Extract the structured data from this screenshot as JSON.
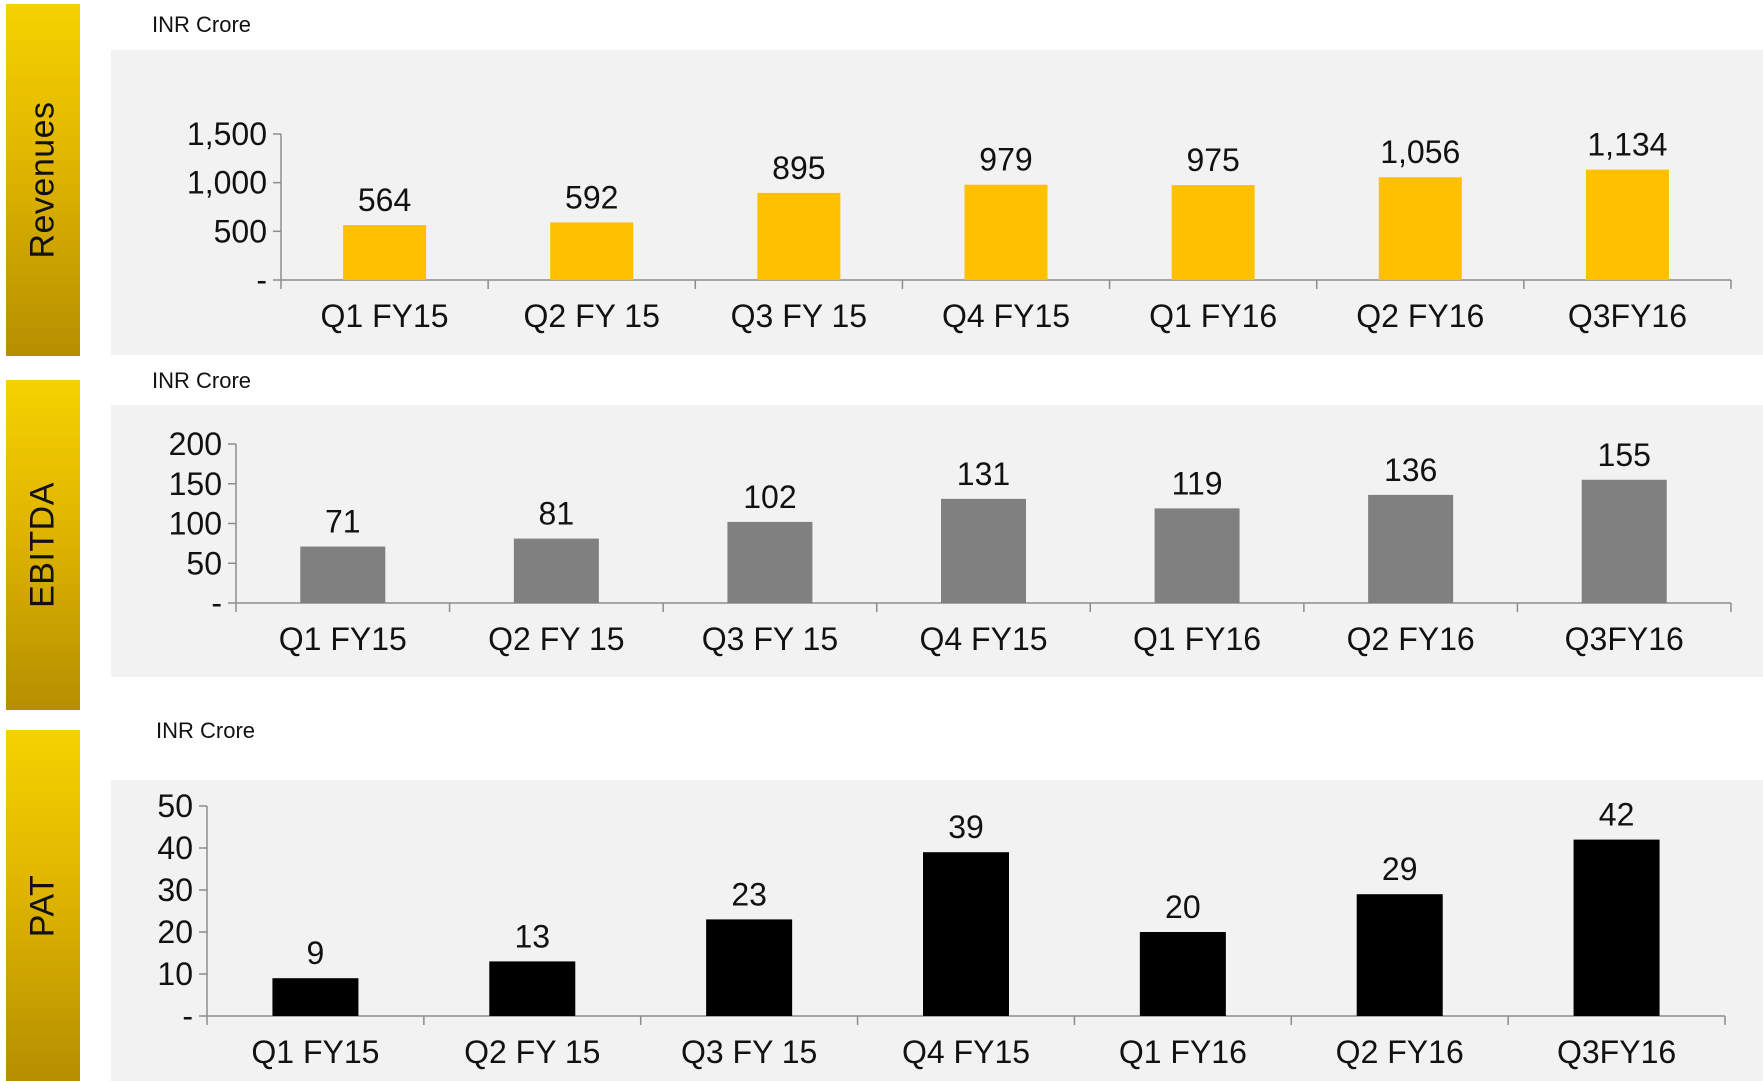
{
  "charts": [
    {
      "side_label": "Revenues",
      "unit": "INR Crore"
    },
    {
      "side_label": "EBITDA",
      "unit": "INR Crore"
    },
    {
      "side_label": "PAT",
      "unit": "INR Crore"
    }
  ],
  "chart_data": [
    {
      "type": "bar",
      "categories": [
        "Q1 FY15",
        "Q2 FY 15",
        "Q3 FY 15",
        "Q4 FY15",
        "Q1 FY16",
        "Q2 FY16",
        "Q3FY16"
      ],
      "values": [
        564,
        592,
        895,
        979,
        975,
        1056,
        1134
      ],
      "value_labels": [
        "564",
        "592",
        "895",
        "979",
        "975",
        "1,056",
        "1,134"
      ],
      "title": "",
      "ylabel": "Revenues",
      "unit": "INR Crore",
      "ylim": [
        0,
        1500
      ],
      "yticks": [
        0,
        500,
        1000,
        1500
      ],
      "ytick_labels": [
        "-",
        "500",
        "1,000",
        "1,500"
      ],
      "color": "#ffc000",
      "grid": false,
      "legend": "none"
    },
    {
      "type": "bar",
      "categories": [
        "Q1 FY15",
        "Q2 FY 15",
        "Q3 FY 15",
        "Q4 FY15",
        "Q1 FY16",
        "Q2 FY16",
        "Q3FY16"
      ],
      "values": [
        71,
        81,
        102,
        131,
        119,
        136,
        155
      ],
      "value_labels": [
        "71",
        "81",
        "102",
        "131",
        "119",
        "136",
        "155"
      ],
      "title": "",
      "ylabel": "EBITDA",
      "unit": "INR Crore",
      "ylim": [
        0,
        200
      ],
      "yticks": [
        0,
        50,
        100,
        150,
        200
      ],
      "ytick_labels": [
        "-",
        "50",
        "100",
        "150",
        "200"
      ],
      "color": "#808080",
      "grid": false,
      "legend": "none"
    },
    {
      "type": "bar",
      "categories": [
        "Q1 FY15",
        "Q2 FY 15",
        "Q3 FY 15",
        "Q4 FY15",
        "Q1 FY16",
        "Q2 FY16",
        "Q3FY16"
      ],
      "values": [
        9,
        13,
        23,
        39,
        20,
        29,
        42
      ],
      "value_labels": [
        "9",
        "13",
        "23",
        "39",
        "20",
        "29",
        "42"
      ],
      "title": "",
      "ylabel": "PAT",
      "unit": "INR Crore",
      "ylim": [
        0,
        50
      ],
      "yticks": [
        0,
        10,
        20,
        30,
        40,
        50
      ],
      "ytick_labels": [
        "-",
        "10",
        "20",
        "30",
        "40",
        "50"
      ],
      "color": "#000000",
      "grid": false,
      "legend": "none"
    }
  ]
}
